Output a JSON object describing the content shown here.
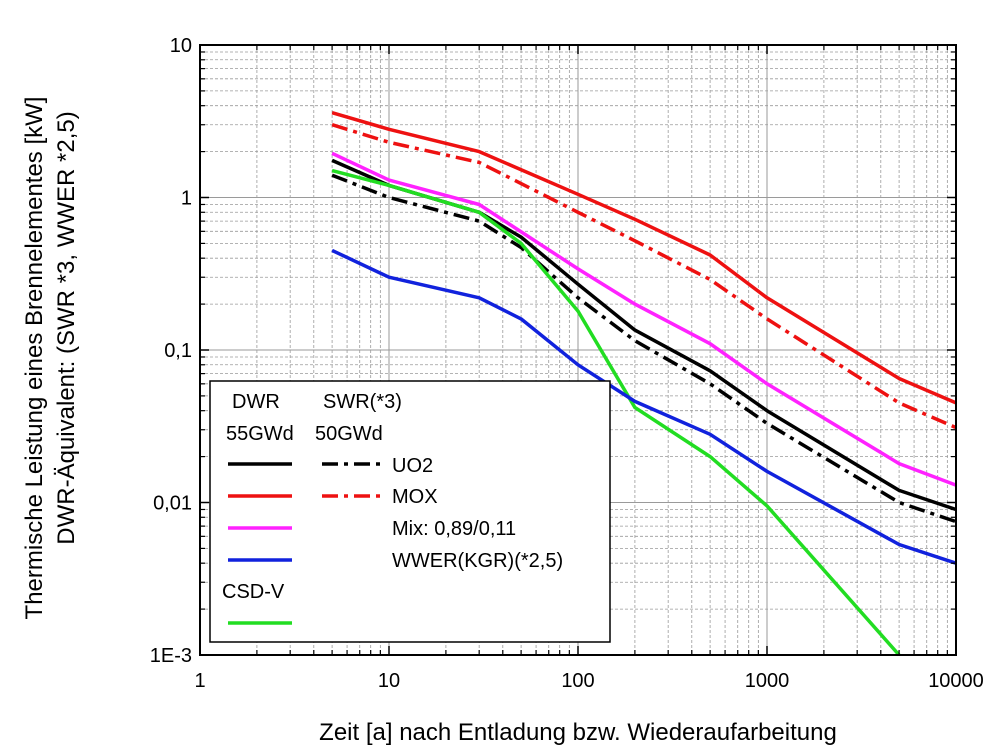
{
  "chart_data": {
    "type": "line",
    "xscale": "log",
    "yscale": "log",
    "xlim": [
      1,
      10000
    ],
    "ylim": [
      0.001,
      10
    ],
    "xlabel": "Zeit [a] nach Entladung bzw. Wiederaufarbeitung",
    "ylabel_line1": "Thermische Leistung eines Brennelementes [kW]",
    "ylabel_line2": "DWR-Äquivalent: (SWR *3, WWER *2,5)",
    "x_ticks": [
      1,
      10,
      100,
      1000,
      10000
    ],
    "x_tick_labels": [
      "1",
      "10",
      "100",
      "1000",
      "10000"
    ],
    "y_ticks": [
      0.001,
      0.01,
      0.1,
      1,
      10
    ],
    "y_tick_labels": [
      "1E-3",
      "0,01",
      "0,1",
      "1",
      "10"
    ],
    "grid": "major and minor",
    "legend": {
      "placement": "bottom-left",
      "header_left": [
        "DWR",
        "55GWd"
      ],
      "header_right": [
        "SWR(*3)",
        "50GWd"
      ],
      "entries": [
        {
          "label": "UO2",
          "solid": "DWR UO2",
          "dashdot": "SWR UO2"
        },
        {
          "label": "MOX",
          "solid": "DWR MOX",
          "dashdot": "SWR MOX"
        },
        {
          "label": "Mix: 0,89/0,11",
          "solid": "DWR Mix"
        },
        {
          "label": "WWER(KGR)(*2,5)",
          "solid": "WWER"
        }
      ],
      "extra_label": "CSD-V"
    },
    "series": [
      {
        "key": "DWR MOX",
        "color": "#ee1111",
        "dash": "solid",
        "x": [
          5,
          10,
          30,
          100,
          200,
          500,
          1000,
          5000,
          10000
        ],
        "y": [
          3.6,
          2.8,
          2.0,
          1.05,
          0.72,
          0.42,
          0.22,
          0.065,
          0.045
        ]
      },
      {
        "key": "SWR MOX",
        "color": "#ee1111",
        "dash": "dashdot",
        "x": [
          5,
          10,
          30,
          100,
          200,
          500,
          1000,
          5000,
          10000
        ],
        "y": [
          3.0,
          2.3,
          1.7,
          0.8,
          0.52,
          0.29,
          0.16,
          0.045,
          0.031
        ]
      },
      {
        "key": "DWR Mix",
        "color": "#ff22ff",
        "dash": "solid",
        "x": [
          5,
          10,
          30,
          100,
          200,
          500,
          1000,
          5000,
          10000
        ],
        "y": [
          1.95,
          1.3,
          0.9,
          0.34,
          0.2,
          0.11,
          0.06,
          0.018,
          0.013
        ]
      },
      {
        "key": "DWR UO2",
        "color": "#000000",
        "dash": "solid",
        "x": [
          5,
          10,
          30,
          50,
          100,
          200,
          500,
          1000,
          5000,
          10000
        ],
        "y": [
          1.75,
          1.2,
          0.8,
          0.55,
          0.27,
          0.135,
          0.073,
          0.04,
          0.012,
          0.009
        ]
      },
      {
        "key": "SWR UO2",
        "color": "#000000",
        "dash": "dashdot",
        "x": [
          5,
          10,
          30,
          50,
          100,
          200,
          500,
          1000,
          5000,
          10000
        ],
        "y": [
          1.4,
          1.0,
          0.7,
          0.47,
          0.22,
          0.115,
          0.06,
          0.033,
          0.01,
          0.0075
        ]
      },
      {
        "key": "CSD-V",
        "color": "#22dd22",
        "dash": "solid",
        "x": [
          5,
          10,
          30,
          50,
          100,
          200,
          500,
          1000,
          5000
        ],
        "y": [
          1.5,
          1.2,
          0.8,
          0.5,
          0.18,
          0.042,
          0.02,
          0.0095,
          0.001
        ]
      },
      {
        "key": "WWER",
        "color": "#1122dd",
        "dash": "solid",
        "x": [
          5,
          10,
          30,
          50,
          100,
          200,
          500,
          1000,
          5000,
          10000
        ],
        "y": [
          0.45,
          0.3,
          0.22,
          0.16,
          0.08,
          0.046,
          0.028,
          0.016,
          0.0053,
          0.004
        ]
      }
    ]
  }
}
